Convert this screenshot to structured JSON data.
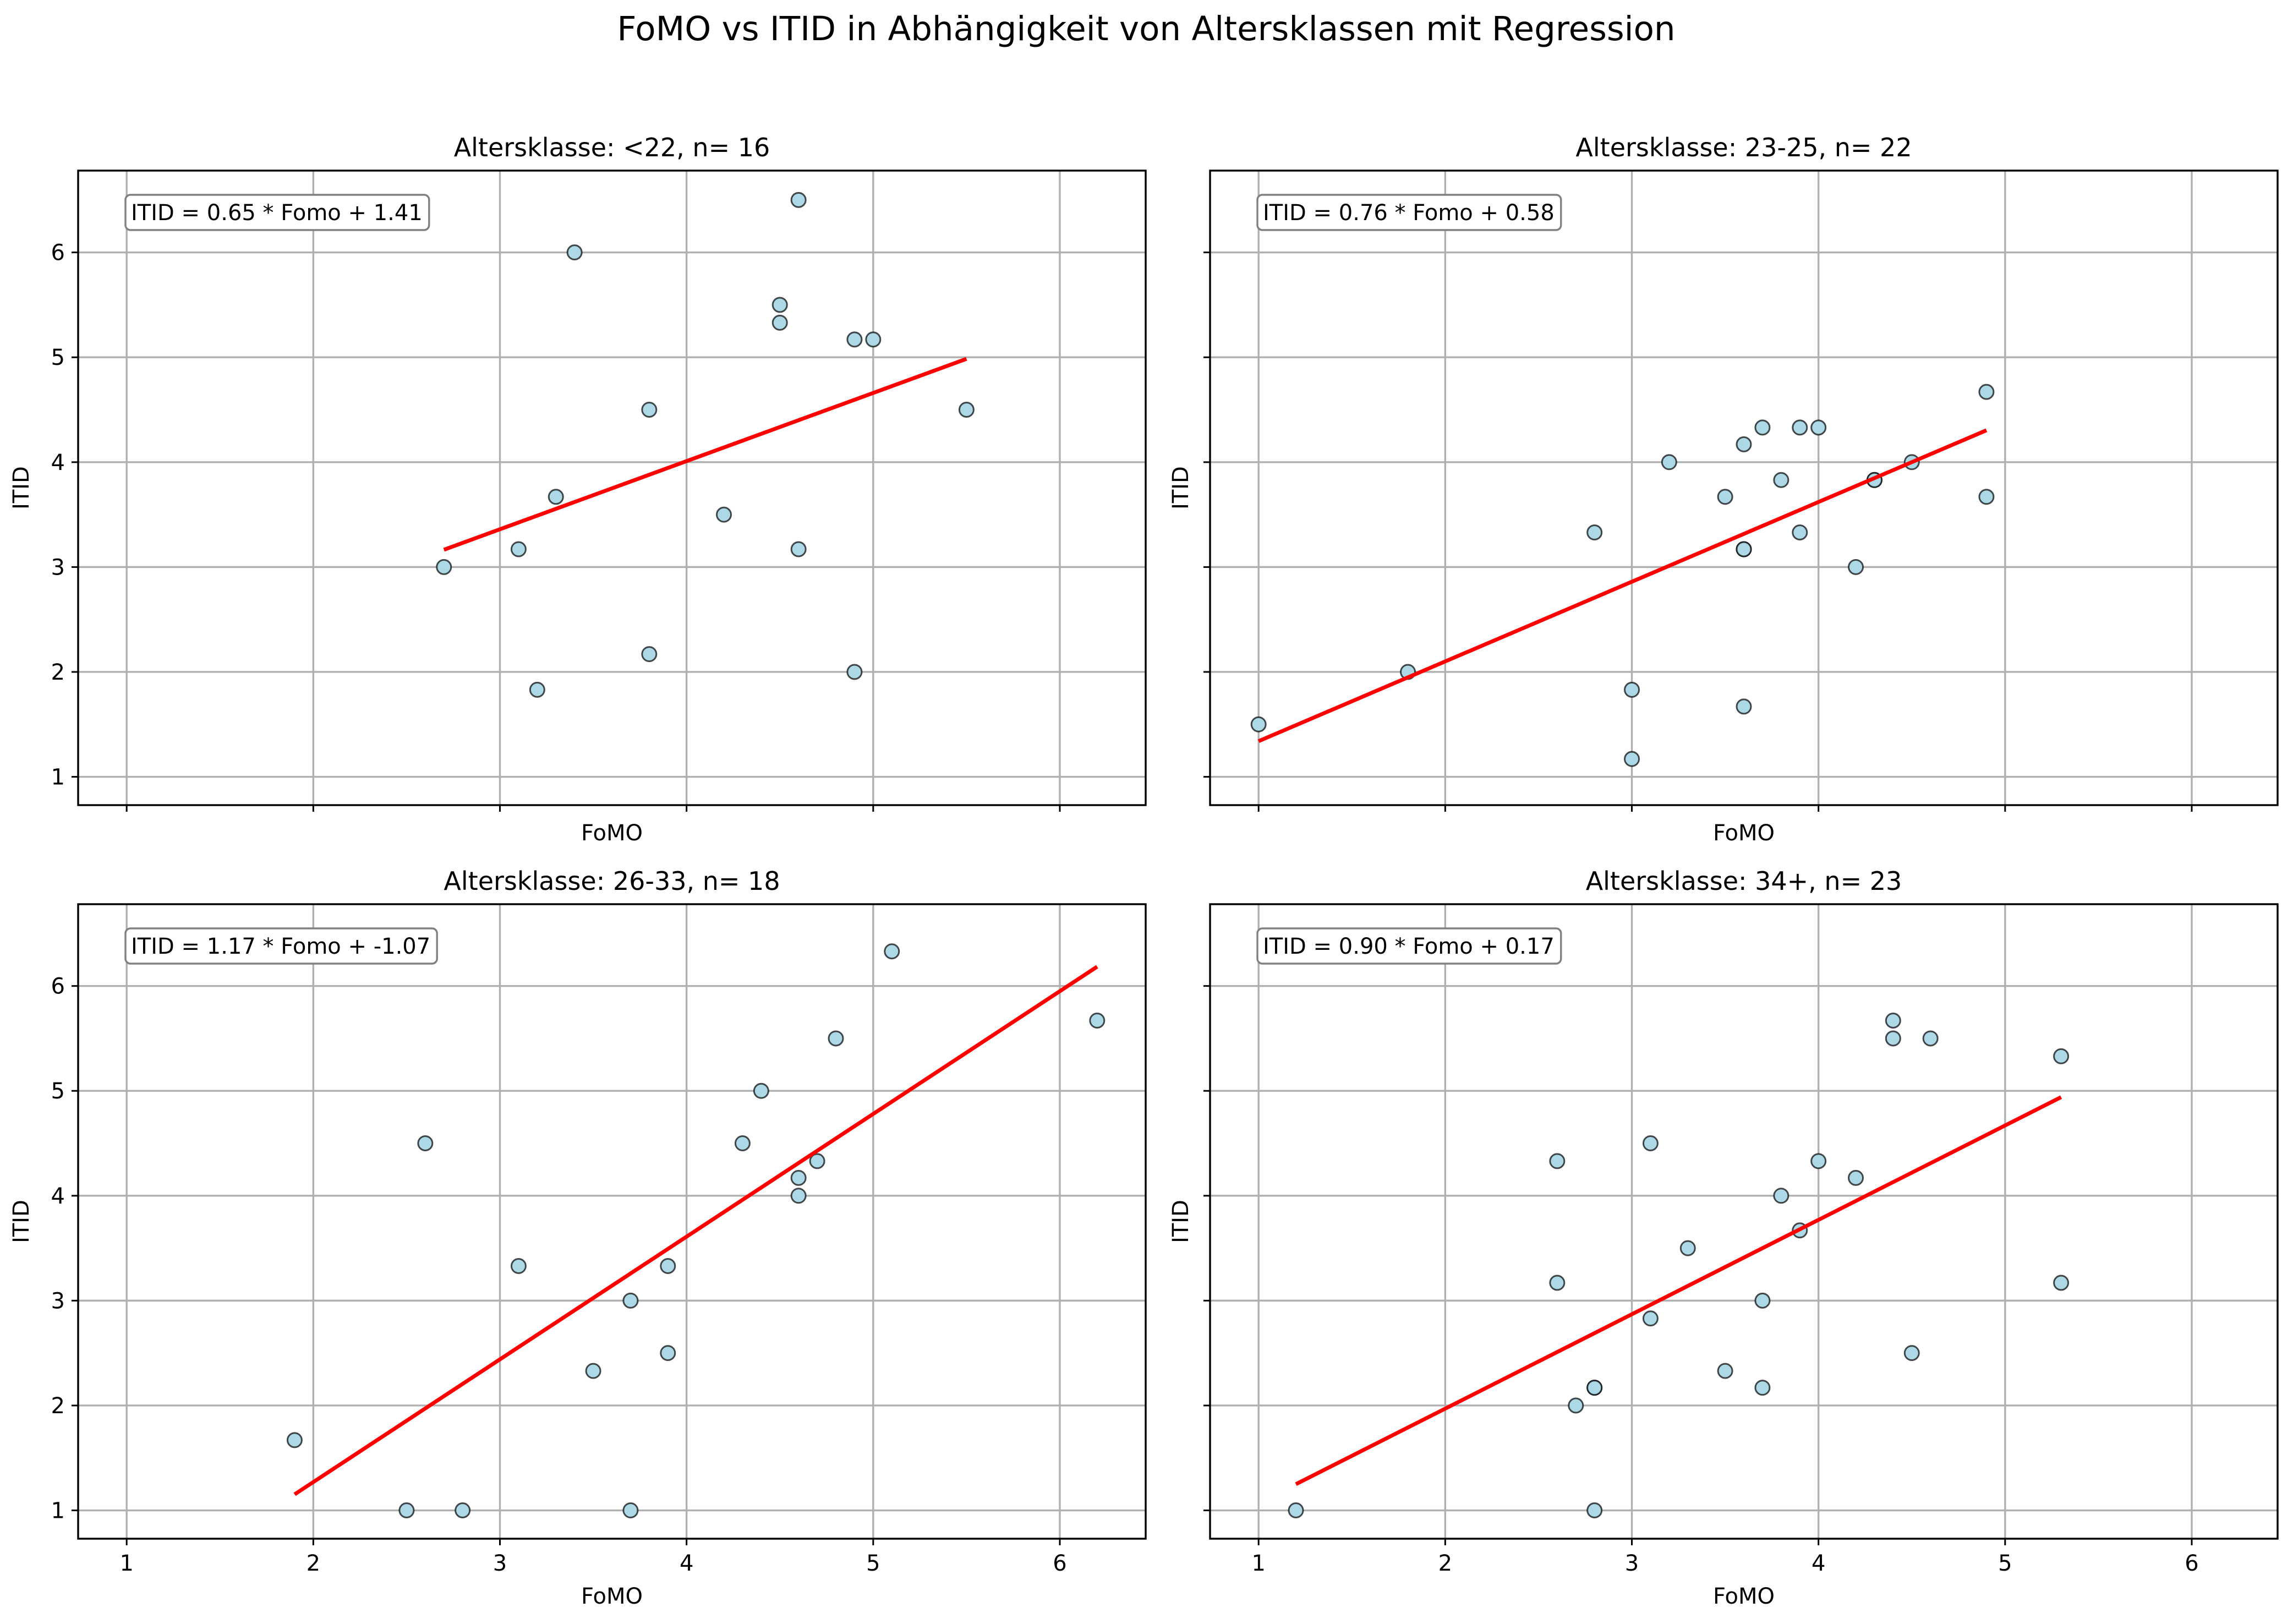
{
  "chart_data": {
    "title": "FoMO vs ITID in Abhängigkeit von Altersklassen mit Regression",
    "type": "scatter",
    "point_color": "#add8e6",
    "line_color": "#ff0000",
    "sharex": true,
    "sharey": true,
    "xlim": [
      0.74,
      6.46
    ],
    "ylim": [
      0.73,
      6.78
    ],
    "xticks": [
      "1",
      "2",
      "3",
      "4",
      "5",
      "6"
    ],
    "yticks": [
      "1",
      "2",
      "3",
      "4",
      "5",
      "6"
    ],
    "grid": true,
    "panels": [
      {
        "title": "Altersklasse: <22, n= 16",
        "xlabel": "FoMO",
        "ylabel": "ITID",
        "show_xticklabels": false,
        "show_yticklabels": true,
        "equation": "ITID = 0.65 * Fomo + 1.41",
        "slope": 0.65,
        "intercept": 1.41,
        "line_x": [
          2.7,
          5.5
        ],
        "points": [
          {
            "x": 2.7,
            "y": 3.0
          },
          {
            "x": 3.1,
            "y": 3.17
          },
          {
            "x": 3.2,
            "y": 1.83
          },
          {
            "x": 3.3,
            "y": 3.67
          },
          {
            "x": 3.4,
            "y": 6.0
          },
          {
            "x": 3.8,
            "y": 4.5
          },
          {
            "x": 3.8,
            "y": 2.17
          },
          {
            "x": 4.2,
            "y": 3.5
          },
          {
            "x": 4.5,
            "y": 5.5
          },
          {
            "x": 4.5,
            "y": 5.33
          },
          {
            "x": 4.6,
            "y": 6.5
          },
          {
            "x": 4.6,
            "y": 3.17
          },
          {
            "x": 4.9,
            "y": 5.17
          },
          {
            "x": 5.0,
            "y": 5.17
          },
          {
            "x": 4.9,
            "y": 2.0
          },
          {
            "x": 5.5,
            "y": 4.5
          }
        ]
      },
      {
        "title": "Altersklasse: 23-25, n= 22",
        "xlabel": "FoMO",
        "ylabel": "ITID",
        "show_xticklabels": false,
        "show_yticklabels": false,
        "equation": "ITID = 0.76 * Fomo + 0.58",
        "slope": 0.76,
        "intercept": 0.58,
        "line_x": [
          1.0,
          4.9
        ],
        "points": [
          {
            "x": 1.0,
            "y": 1.5
          },
          {
            "x": 1.8,
            "y": 2.0
          },
          {
            "x": 2.8,
            "y": 3.33
          },
          {
            "x": 3.0,
            "y": 1.83
          },
          {
            "x": 3.0,
            "y": 1.17
          },
          {
            "x": 3.2,
            "y": 4.0
          },
          {
            "x": 3.5,
            "y": 3.67
          },
          {
            "x": 3.6,
            "y": 4.17
          },
          {
            "x": 3.6,
            "y": 3.17
          },
          {
            "x": 3.6,
            "y": 3.17
          },
          {
            "x": 3.6,
            "y": 1.67
          },
          {
            "x": 3.7,
            "y": 4.33
          },
          {
            "x": 3.8,
            "y": 3.83
          },
          {
            "x": 3.9,
            "y": 4.33
          },
          {
            "x": 3.9,
            "y": 3.33
          },
          {
            "x": 4.0,
            "y": 4.33
          },
          {
            "x": 4.2,
            "y": 3.0
          },
          {
            "x": 4.3,
            "y": 3.83
          },
          {
            "x": 4.3,
            "y": 3.83
          },
          {
            "x": 4.5,
            "y": 4.0
          },
          {
            "x": 4.9,
            "y": 4.67
          },
          {
            "x": 4.9,
            "y": 3.67
          }
        ]
      },
      {
        "title": "Altersklasse: 26-33, n= 18",
        "xlabel": "FoMO",
        "ylabel": "ITID",
        "show_xticklabels": true,
        "show_yticklabels": true,
        "equation": "ITID = 1.17 * Fomo + -1.07",
        "slope": 1.17,
        "intercept": -1.07,
        "line_x": [
          1.9,
          6.2
        ],
        "points": [
          {
            "x": 1.9,
            "y": 1.67
          },
          {
            "x": 2.5,
            "y": 1.0
          },
          {
            "x": 2.6,
            "y": 4.5
          },
          {
            "x": 2.8,
            "y": 1.0
          },
          {
            "x": 3.1,
            "y": 3.33
          },
          {
            "x": 3.5,
            "y": 2.33
          },
          {
            "x": 3.7,
            "y": 3.0
          },
          {
            "x": 3.7,
            "y": 1.0
          },
          {
            "x": 3.9,
            "y": 3.33
          },
          {
            "x": 3.9,
            "y": 2.5
          },
          {
            "x": 4.3,
            "y": 4.5
          },
          {
            "x": 4.4,
            "y": 5.0
          },
          {
            "x": 4.6,
            "y": 4.17
          },
          {
            "x": 4.6,
            "y": 4.0
          },
          {
            "x": 4.7,
            "y": 4.33
          },
          {
            "x": 4.8,
            "y": 5.5
          },
          {
            "x": 5.1,
            "y": 6.33
          },
          {
            "x": 6.2,
            "y": 5.67
          }
        ]
      },
      {
        "title": "Altersklasse: 34+, n= 23",
        "xlabel": "FoMO",
        "ylabel": "ITID",
        "show_xticklabels": true,
        "show_yticklabels": false,
        "equation": "ITID = 0.90 * Fomo + 0.17",
        "slope": 0.9,
        "intercept": 0.17,
        "line_x": [
          1.2,
          5.3
        ],
        "points": [
          {
            "x": 1.2,
            "y": 1.0
          },
          {
            "x": 2.6,
            "y": 4.33
          },
          {
            "x": 2.6,
            "y": 3.17
          },
          {
            "x": 2.7,
            "y": 2.0
          },
          {
            "x": 2.8,
            "y": 2.17
          },
          {
            "x": 2.8,
            "y": 2.17
          },
          {
            "x": 2.8,
            "y": 1.0
          },
          {
            "x": 3.1,
            "y": 4.5
          },
          {
            "x": 3.1,
            "y": 2.83
          },
          {
            "x": 3.3,
            "y": 3.5
          },
          {
            "x": 3.5,
            "y": 2.33
          },
          {
            "x": 3.7,
            "y": 3.0
          },
          {
            "x": 3.7,
            "y": 2.17
          },
          {
            "x": 3.8,
            "y": 4.0
          },
          {
            "x": 3.9,
            "y": 3.67
          },
          {
            "x": 4.0,
            "y": 4.33
          },
          {
            "x": 4.2,
            "y": 4.17
          },
          {
            "x": 4.4,
            "y": 5.67
          },
          {
            "x": 4.4,
            "y": 5.5
          },
          {
            "x": 4.6,
            "y": 5.5
          },
          {
            "x": 4.5,
            "y": 2.5
          },
          {
            "x": 5.3,
            "y": 5.33
          },
          {
            "x": 5.3,
            "y": 3.17
          }
        ]
      }
    ]
  }
}
